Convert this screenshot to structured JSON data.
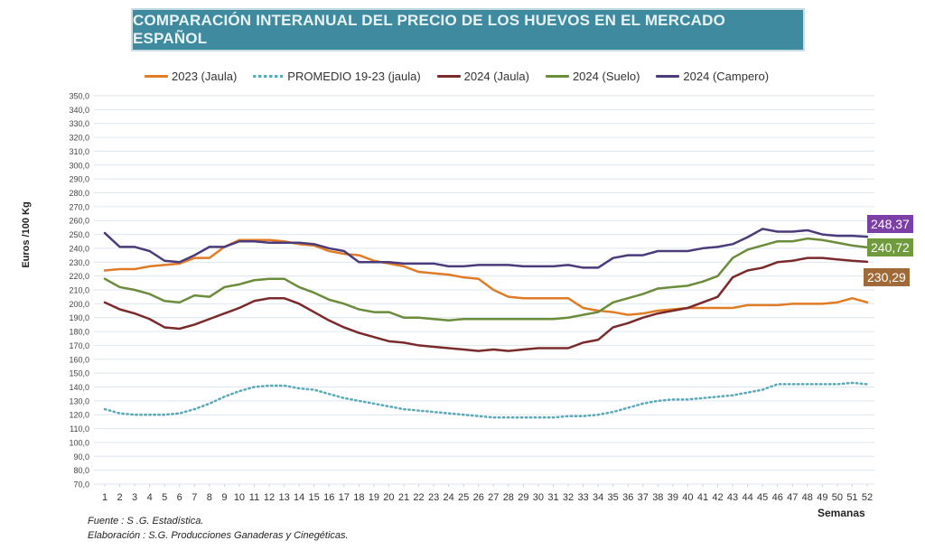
{
  "chart_data": {
    "type": "line",
    "title": "COMPARACIÓN INTERANUAL DEL PRECIO DE LOS HUEVOS EN EL MERCADO ESPAÑOL",
    "xlabel": "Semanas",
    "ylabel": "Euros /100 Kg",
    "ylim": [
      70,
      350
    ],
    "ytick_step": 10,
    "yticks": [
      "70,0",
      "80,0",
      "90,0",
      "100,0",
      "110,0",
      "120,0",
      "130,0",
      "140,0",
      "150,0",
      "160,0",
      "170,0",
      "180,0",
      "190,0",
      "200,0",
      "210,0",
      "220,0",
      "230,0",
      "240,0",
      "250,0",
      "260,0",
      "270,0",
      "280,0",
      "290,0",
      "300,0",
      "310,0",
      "320,0",
      "330,0",
      "340,0",
      "350,0"
    ],
    "x": [
      1,
      2,
      3,
      4,
      5,
      6,
      7,
      8,
      9,
      10,
      11,
      12,
      13,
      14,
      15,
      16,
      17,
      18,
      19,
      20,
      21,
      22,
      23,
      24,
      25,
      26,
      27,
      28,
      29,
      30,
      31,
      32,
      33,
      34,
      35,
      36,
      37,
      38,
      39,
      40,
      41,
      42,
      43,
      44,
      45,
      46,
      47,
      48,
      49,
      50,
      51,
      52
    ],
    "grid": true,
    "legend_position": "top",
    "series": [
      {
        "name": "2023 (Jaula)",
        "color": "#e07b26",
        "style": "solid",
        "values": [
          224,
          225,
          225,
          227,
          228,
          229,
          233,
          233,
          241,
          246,
          246,
          246,
          245,
          243,
          242,
          238,
          236,
          235,
          231,
          229,
          227,
          223,
          222,
          221,
          219,
          218,
          210,
          205,
          204,
          204,
          204,
          204,
          197,
          195,
          194,
          192,
          193,
          195,
          196,
          197,
          197,
          197,
          197,
          199,
          199,
          199,
          200,
          200,
          200,
          201,
          204,
          201
        ]
      },
      {
        "name": "PROMEDIO 19-23 (jaula)",
        "color": "#5aa9b8",
        "style": "dotted",
        "values": [
          124,
          121,
          120,
          120,
          120,
          121,
          124,
          128,
          133,
          137,
          140,
          141,
          141,
          139,
          138,
          135,
          132,
          130,
          128,
          126,
          124,
          123,
          122,
          121,
          120,
          119,
          118,
          118,
          118,
          118,
          118,
          119,
          119,
          120,
          122,
          125,
          128,
          130,
          131,
          131,
          132,
          133,
          134,
          136,
          138,
          142,
          142,
          142,
          142,
          142,
          143,
          142
        ]
      },
      {
        "name": "2024 (Jaula)",
        "color": "#7a2a2a",
        "style": "solid",
        "values": [
          201,
          196,
          193,
          189,
          183,
          182,
          185,
          189,
          193,
          197,
          202,
          204,
          204,
          200,
          194,
          188,
          183,
          179,
          176,
          173,
          172,
          170,
          169,
          168,
          167,
          166,
          167,
          166,
          167,
          168,
          168,
          168,
          172,
          174,
          183,
          186,
          190,
          193,
          195,
          197,
          201,
          205,
          219,
          224,
          226,
          230,
          231,
          233,
          233,
          232,
          231,
          230.29
        ]
      },
      {
        "name": "2024 (Suelo)",
        "color": "#6b8c3a",
        "style": "solid",
        "values": [
          218,
          212,
          210,
          207,
          202,
          201,
          206,
          205,
          212,
          214,
          217,
          218,
          218,
          212,
          208,
          203,
          200,
          196,
          194,
          194,
          190,
          190,
          189,
          188,
          189,
          189,
          189,
          189,
          189,
          189,
          189,
          190,
          192,
          194,
          201,
          204,
          207,
          211,
          212,
          213,
          216,
          220,
          233,
          239,
          242,
          245,
          245,
          247,
          246,
          244,
          242,
          240.72
        ]
      },
      {
        "name": "2024 (Campero)",
        "color": "#4b3b7a",
        "style": "solid",
        "values": [
          251,
          241,
          241,
          238,
          231,
          230,
          235,
          241,
          241,
          245,
          245,
          244,
          244,
          244,
          243,
          240,
          238,
          230,
          230,
          230,
          229,
          229,
          229,
          227,
          227,
          228,
          228,
          228,
          227,
          227,
          227,
          228,
          226,
          226,
          233,
          235,
          235,
          238,
          238,
          238,
          240,
          241,
          243,
          248,
          254,
          252,
          252,
          253,
          250,
          249,
          249,
          248.37
        ]
      }
    ],
    "end_labels": [
      {
        "series": "2024 (Campero)",
        "text": "248,37",
        "bg": "#7b3fa6"
      },
      {
        "series": "2024 (Suelo)",
        "text": "240,72",
        "bg": "#6f9a3d"
      },
      {
        "series": "2024 (Jaula)",
        "text": "230,29",
        "bg": "#a06a38"
      }
    ],
    "annotations": {
      "source": "Fuente :  S .G. Estadística.",
      "elaboration": "Elaboración : S.G. Producciones Ganaderas y Cinegéticas."
    }
  }
}
